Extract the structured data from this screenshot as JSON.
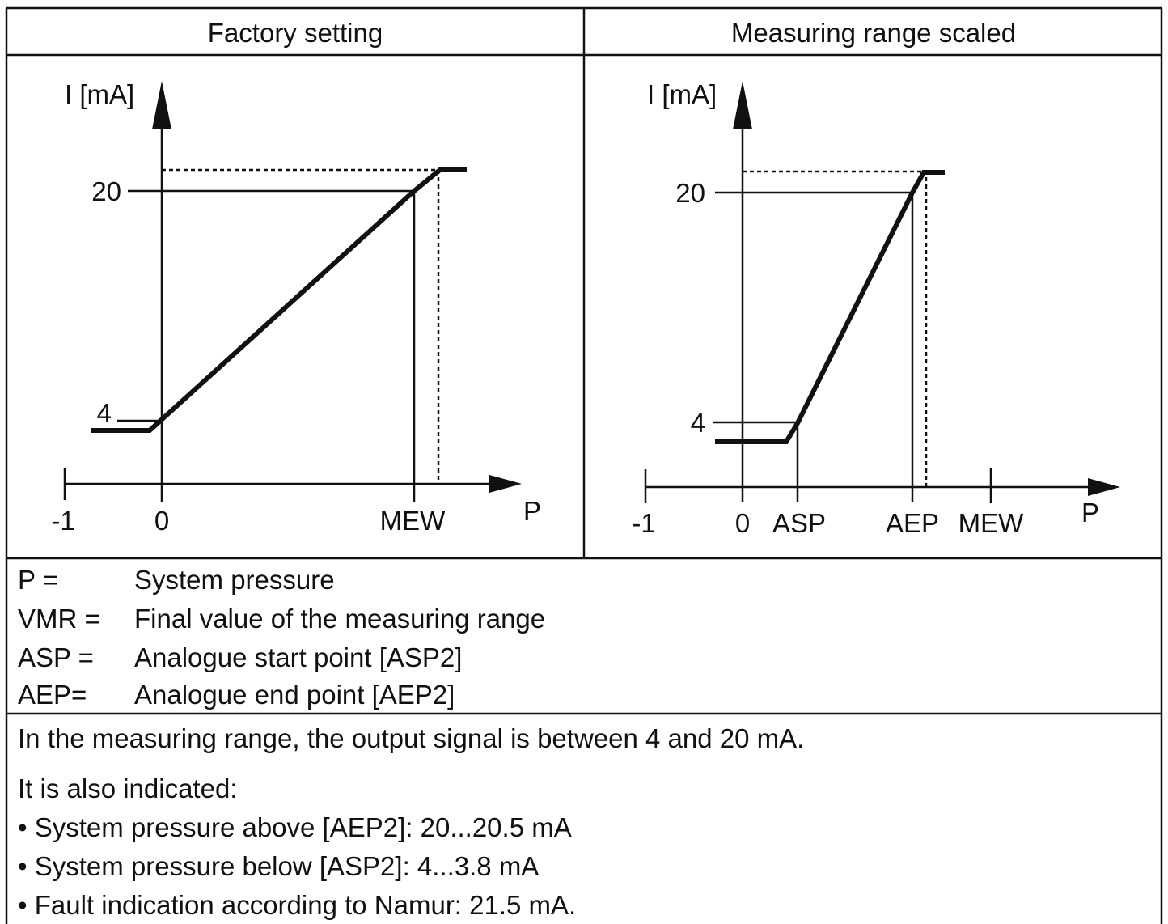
{
  "table": {
    "headers": [
      "Factory setting",
      "Measuring range scaled"
    ],
    "diagrams": [
      {
        "y_axis_label": "I [mA]",
        "y_labels": [
          "20",
          "4"
        ],
        "x_labels": [
          "-1",
          "0",
          "MEW"
        ],
        "x_axis_label": "P"
      },
      {
        "y_axis_label": "I [mA]",
        "y_labels": [
          "20",
          "4"
        ],
        "x_labels": [
          "-1",
          "0",
          "ASP",
          "AEP",
          "MEW"
        ],
        "x_axis_label": "P"
      }
    ],
    "legend": [
      [
        "P =",
        "System pressure"
      ],
      [
        "VMR =",
        "Final value of the measuring range"
      ],
      [
        "ASP =",
        "Analogue start point [ASP2]"
      ],
      [
        "AEP=",
        "Analogue end point [AEP2]"
      ]
    ],
    "notes": [
      "In the measuring range, the output signal is between 4 and 20 mA.",
      "It is also indicated:",
      "• System pressure above [AEP2]: 20...20.5 mA",
      "• System pressure below [ASP2]: 4...3.8 mA",
      "• Fault indication according to Namur: 21.5 mA."
    ]
  }
}
